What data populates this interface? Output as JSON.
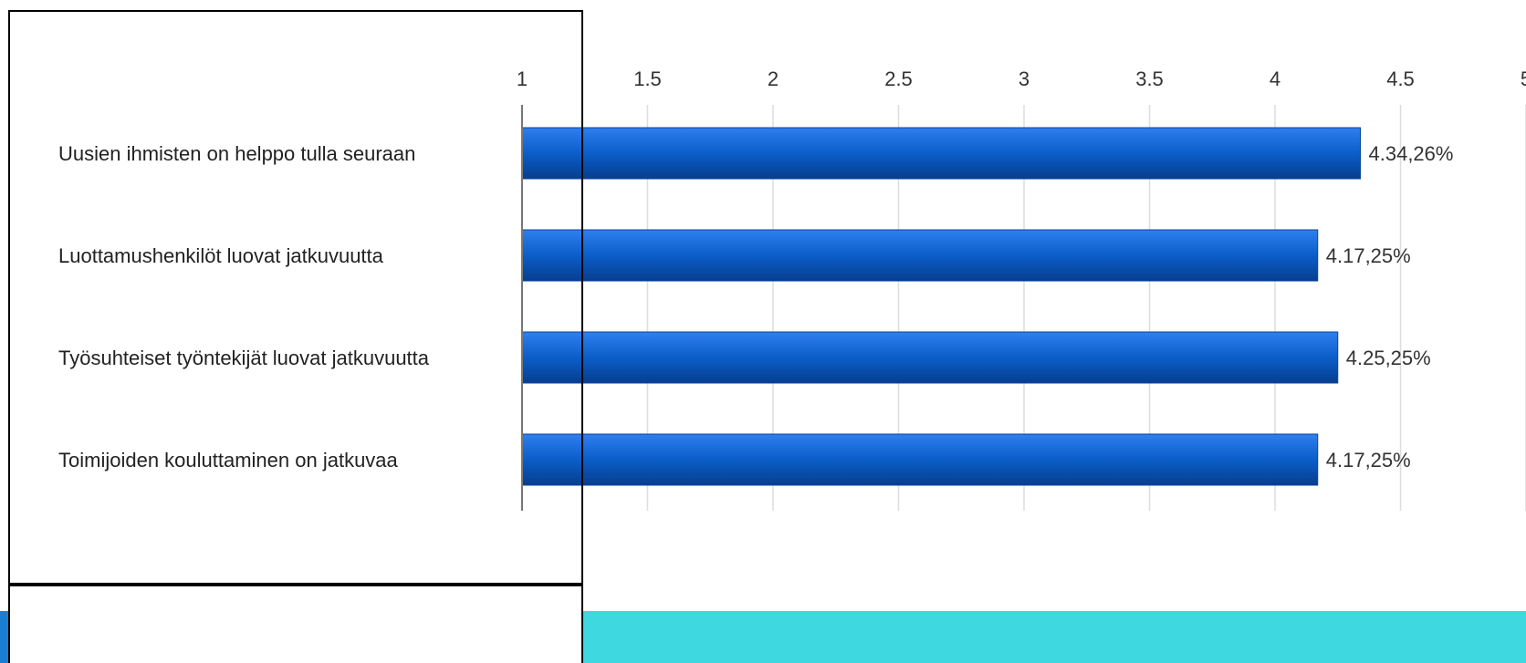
{
  "chart_data": {
    "type": "bar",
    "orientation": "horizontal",
    "title": "",
    "xlabel": "",
    "ylabel": "",
    "xlim": [
      1,
      5
    ],
    "x_ticks": [
      "1",
      "1.5",
      "2",
      "2.5",
      "3",
      "3.5",
      "4",
      "4.5",
      "5"
    ],
    "grid": true,
    "categories": [
      "Uusien ihmisten on helppo tulla seuraan",
      "Luottamushenkilöt luovat jatkuvuutta",
      "Työsuhteiset työntekijät luovat jatkuvuutta",
      "Toimijoiden kouluttaminen on jatkuvaa"
    ],
    "values": [
      4.34,
      4.17,
      4.25,
      4.17
    ],
    "data_labels": [
      "4.34,26%",
      "4.17,25%",
      "4.25,25%",
      "4.17,25%"
    ],
    "bar_color": "#0b5ec9"
  },
  "colors": {
    "band": "#3dd8e0",
    "edge_blue": "#1a7fd4",
    "grid": "#dddddd",
    "axis": "#777777"
  }
}
